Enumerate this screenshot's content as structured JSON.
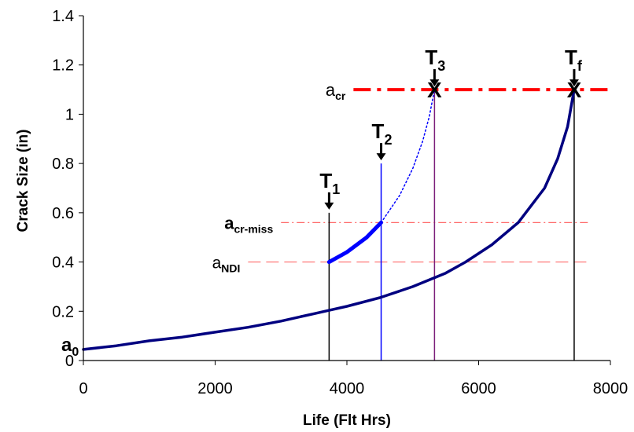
{
  "chart_data": {
    "type": "line",
    "title": "",
    "xlabel": "Life (Flt Hrs)",
    "ylabel": "Crack Size (in)",
    "xlim": [
      0,
      8000
    ],
    "ylim": [
      0,
      1.4
    ],
    "x_ticks": [
      "0",
      "2000",
      "4000",
      "6000",
      "8000"
    ],
    "y_ticks": [
      "0",
      "0.2",
      "0.4",
      "0.6",
      "0.8",
      "1",
      "1.2",
      "1.4"
    ],
    "grid": false,
    "series": [
      {
        "style": "solid-navy",
        "x": [
          0,
          500,
          1000,
          1500,
          2000,
          2500,
          3000,
          3500,
          3750,
          4000,
          4500,
          5000,
          5500,
          5800,
          6200,
          6600,
          7000,
          7200,
          7350,
          7450
        ],
        "y": [
          0.045,
          0.06,
          0.08,
          0.095,
          0.115,
          0.135,
          0.16,
          0.19,
          0.205,
          0.22,
          0.255,
          0.3,
          0.355,
          0.4,
          0.47,
          0.56,
          0.7,
          0.82,
          0.95,
          1.1
        ]
      },
      {
        "style": "thick-blue",
        "x": [
          3730,
          4000,
          4300,
          4520
        ],
        "y": [
          0.4,
          0.44,
          0.5,
          0.56
        ]
      },
      {
        "style": "dotted-blue",
        "x": [
          4520,
          4800,
          5000,
          5150,
          5250,
          5330
        ],
        "y": [
          0.56,
          0.67,
          0.78,
          0.89,
          0.99,
          1.1
        ]
      }
    ],
    "reference_lines": [
      {
        "label_main": "a",
        "label_sub": "cr",
        "y": 1.1,
        "x_start": 4100,
        "x_end": 8000,
        "style": "red-dashdot-thick"
      },
      {
        "label_main": "a",
        "label_sub": "cr-miss",
        "y": 0.56,
        "x_start": 3000,
        "x_end": 7700,
        "style": "red-dashdot-thin"
      },
      {
        "label_main": "a",
        "label_sub": "NDI",
        "y": 0.4,
        "x_start": 2500,
        "x_end": 7700,
        "style": "red-dashed-thin"
      }
    ],
    "time_markers": [
      {
        "label_main": "T",
        "label_sub": "1",
        "x": 3730,
        "y_top": 0.6,
        "color": "#000000"
      },
      {
        "label_main": "T",
        "label_sub": "2",
        "x": 4520,
        "y_top": 0.8,
        "color": "#0000ff"
      },
      {
        "label_main": "T",
        "label_sub": "3",
        "x": 5330,
        "y_top": 1.1,
        "color": "#7b1e7a"
      },
      {
        "label_main": "T",
        "label_sub": "f",
        "x": 7450,
        "y_top": 1.1,
        "color": "#000000"
      }
    ],
    "x_marks": [
      {
        "label": "X",
        "x": 5330,
        "y": 1.1
      },
      {
        "label": "X",
        "x": 7450,
        "y": 1.1
      }
    ],
    "initial_label": {
      "label_main": "a",
      "label_sub": "0"
    },
    "colors": {
      "main_curve": "#000080",
      "blue": "#0000ff",
      "red": "#ff0000",
      "pink": "#ff6a6a"
    }
  }
}
